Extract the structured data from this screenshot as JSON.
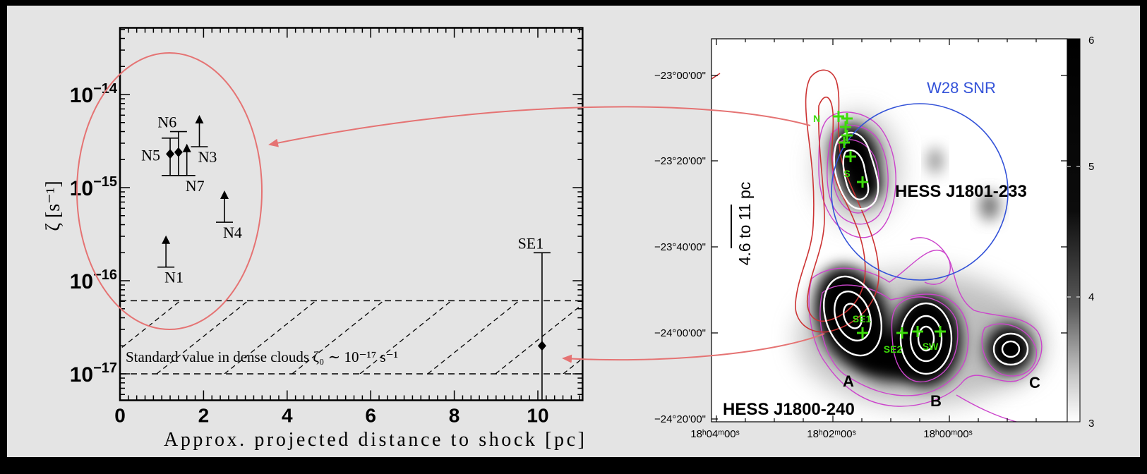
{
  "chart_data": {
    "type": "scatter",
    "title": "",
    "xlabel": "Approx. projected distance to shock [pc]",
    "ylabel": "ζ [s⁻¹]",
    "xscale": "linear",
    "yscale": "log",
    "xlim": [
      0,
      11.07
    ],
    "ylim": [
      5.2e-18,
      5.2e-14
    ],
    "grid": false,
    "xticks": [
      0,
      2,
      4,
      6,
      8,
      10
    ],
    "xtick_labels": [
      "0",
      "2",
      "4",
      "6",
      "8",
      "10"
    ],
    "yticks": [
      1e-14,
      1e-15,
      1e-16,
      1e-17
    ],
    "ytick_labels": [
      {
        "base": "10",
        "exp": "−14"
      },
      {
        "base": "10",
        "exp": "−15"
      },
      {
        "base": "10",
        "exp": "−16"
      },
      {
        "base": "10",
        "exp": "−17"
      }
    ],
    "points": [
      {
        "label": "N1",
        "x": 1.1,
        "lower_limit": 1.4e-16,
        "label_pos": "below-right"
      },
      {
        "label": "N5",
        "x": 1.2,
        "y": 2.3e-15,
        "y_err": [
          1.35e-15,
          3.4e-15
        ],
        "label_pos": "left"
      },
      {
        "label": "N6",
        "x": 1.4,
        "y": 2.4e-15,
        "y_err": [
          1.35e-15,
          4e-15
        ],
        "label_pos": "above"
      },
      {
        "label": "N7",
        "x": 1.6,
        "lower_limit": 1.35e-15,
        "label_pos": "below-right"
      },
      {
        "label": "N3",
        "x": 1.9,
        "lower_limit": 2.75e-15,
        "label_pos": "below-right"
      },
      {
        "label": "N4",
        "x": 2.5,
        "lower_limit": 4.25e-16,
        "label_pos": "below-right"
      },
      {
        "label": "SE1",
        "x": 10.1,
        "y": 2e-17,
        "y_err": [
          0,
          2e-16
        ],
        "label_pos": "above"
      }
    ],
    "reference_band": {
      "lower": 1e-17,
      "upper": 6.1e-17,
      "label": "Standard value in dense clouds ζ₀ ∼ 10⁻¹⁷ s⁻¹"
    }
  },
  "map": {
    "dec_labels": [
      "−23°00'00\"",
      "−23°20'00\"",
      "−23°40'00\"",
      "−24°00'00\"",
      "−24°20'00\""
    ],
    "ra_labels": [
      "18ʰ04ᵐ00ˢ",
      "18ʰ02ᵐ00ˢ",
      "18ʰ00ᵐ00ˢ"
    ],
    "colorbar_labels": [
      "6",
      "5",
      "4",
      "3"
    ],
    "snr_label": "W28 SNR",
    "source_north": "HESS J1801-233",
    "source_south": "HESS J1800-240",
    "region_labels": {
      "a": "A",
      "b": "B",
      "c": "C"
    },
    "cloud_labels": {
      "n": "N",
      "s": "S",
      "se1": "SE1",
      "se2": "SE2",
      "sw": "SW"
    },
    "scale_label": "4.6 to 11 pc"
  },
  "colors": {
    "annotation_red": "#e57373",
    "snr_circle": "#3352d8",
    "cloud_markers": "#3ddc0a",
    "contour_magenta": "#cc44cc",
    "contour_red": "#cc3333",
    "contour_white": "#ffffff"
  }
}
